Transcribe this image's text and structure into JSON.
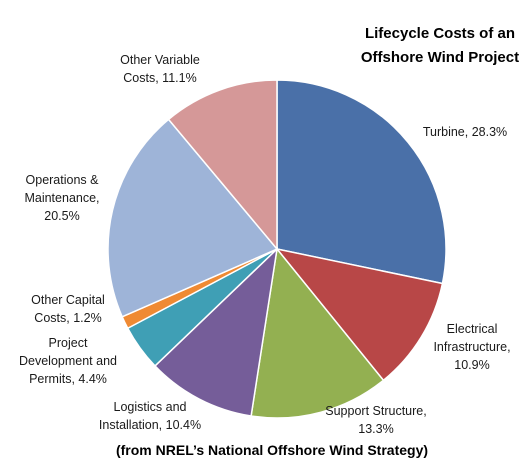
{
  "chart_data": {
    "type": "pie",
    "title_lines": [
      "Lifecycle Costs of an",
      "Offshore Wind Project"
    ],
    "source_note": "(from NREL’s National Offshore Wind Strategy)",
    "legend": "none",
    "slices": [
      {
        "label": "Turbine",
        "value": 28.3,
        "color": "#4a70a8",
        "label_lines": [
          "Turbine, 28.3%"
        ]
      },
      {
        "label": "Electrical Infrastructure",
        "value": 10.9,
        "color": "#b84747",
        "label_lines": [
          "Electrical",
          "Infrastructure,",
          "10.9%"
        ]
      },
      {
        "label": "Support Structure",
        "value": 13.3,
        "color": "#93b051",
        "label_lines": [
          "Support Structure,",
          "13.3%"
        ]
      },
      {
        "label": "Logistics and Installation",
        "value": 10.4,
        "color": "#755d99",
        "label_lines": [
          "Logistics and",
          "Installation, 10.4%"
        ]
      },
      {
        "label": "Project Development and Permits",
        "value": 4.4,
        "color": "#3f9fb5",
        "label_lines": [
          "Project",
          "Development and",
          "Permits, 4.4%"
        ]
      },
      {
        "label": "Other Capital Costs",
        "value": 1.2,
        "color": "#ef8a33",
        "label_lines": [
          "Other Capital",
          "Costs, 1.2%"
        ]
      },
      {
        "label": "Operations & Maintenance",
        "value": 20.5,
        "color": "#9eb4d8",
        "label_lines": [
          "Operations &",
          "Maintenance,",
          "20.5%"
        ]
      },
      {
        "label": "Other Variable Costs",
        "value": 11.1,
        "color": "#d59898",
        "label_lines": [
          "Other Variable",
          "Costs, 11.1%"
        ]
      }
    ]
  }
}
